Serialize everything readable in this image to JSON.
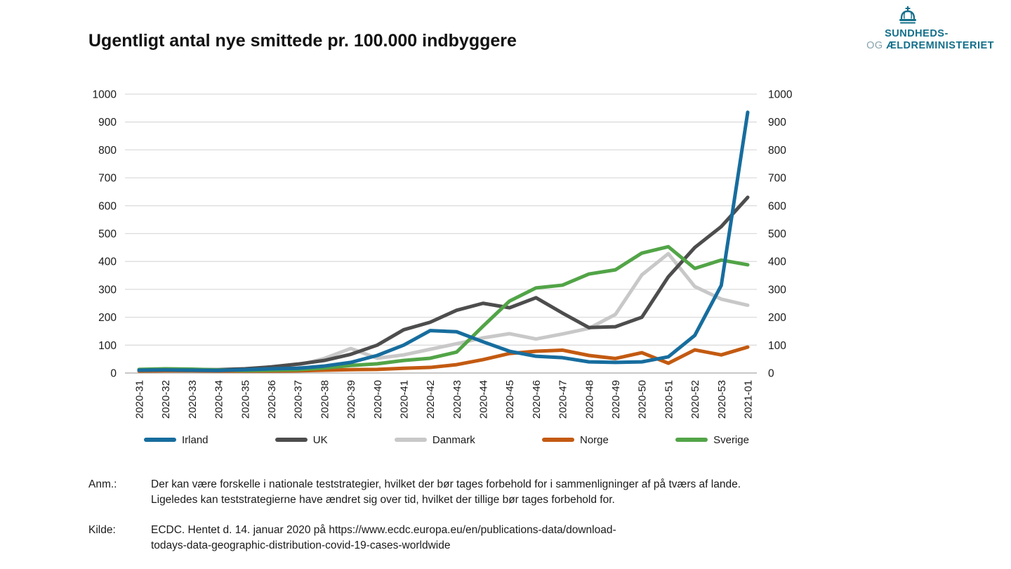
{
  "title": "Ugentligt antal nye smittede pr. 100.000 indbyggere",
  "logo": {
    "crown_icon": "royal-crown",
    "line1": "SUNDHEDS-",
    "line2_prefix": "OG",
    "line2_main": "ÆLDREMINISTERIET",
    "color": "#136f8a",
    "muted_color": "#86a3ae"
  },
  "chart_data": {
    "type": "line",
    "title": "Ugentligt antal nye smittede pr. 100.000 indbyggere",
    "xlabel": "",
    "ylabel": "",
    "ylim": [
      0,
      1000
    ],
    "ytick_step": 100,
    "ytick_labels": [
      "0",
      "100",
      "200",
      "300",
      "400",
      "500",
      "600",
      "700",
      "800",
      "900",
      "1000"
    ],
    "grid": true,
    "dual_y_axis": true,
    "legend_position": "bottom",
    "x": [
      "2020-31",
      "2020-32",
      "2020-33",
      "2020-34",
      "2020-35",
      "2020-36",
      "2020-37",
      "2020-38",
      "2020-39",
      "2020-40",
      "2020-41",
      "2020-42",
      "2020-43",
      "2020-44",
      "2020-45",
      "2020-46",
      "2020-47",
      "2020-48",
      "2020-49",
      "2020-50",
      "2020-51",
      "2020-52",
      "2020-53",
      "2021-01"
    ],
    "series": [
      {
        "name": "Irland",
        "color": "#176d9e",
        "values": [
          10,
          11,
          10,
          9,
          12,
          15,
          17,
          25,
          38,
          63,
          100,
          152,
          148,
          112,
          78,
          60,
          55,
          40,
          38,
          40,
          58,
          135,
          314,
          935
        ]
      },
      {
        "name": "UK",
        "color": "#4d4d4d",
        "values": [
          10,
          12,
          12,
          12,
          15,
          22,
          32,
          45,
          67,
          100,
          155,
          182,
          225,
          250,
          234,
          270,
          215,
          163,
          166,
          200,
          345,
          450,
          525,
          630
        ]
      },
      {
        "name": "Danmark",
        "color": "#c8c8c8",
        "values": [
          8,
          9,
          9,
          10,
          13,
          18,
          28,
          52,
          88,
          53,
          65,
          85,
          105,
          126,
          141,
          122,
          140,
          160,
          210,
          352,
          428,
          310,
          265,
          243
        ]
      },
      {
        "name": "Norge",
        "color": "#c35a11",
        "values": [
          7,
          8,
          8,
          7,
          7,
          7,
          8,
          10,
          12,
          13,
          17,
          20,
          30,
          48,
          70,
          78,
          82,
          63,
          52,
          73,
          35,
          83,
          65,
          93
        ]
      },
      {
        "name": "Sverige",
        "color": "#52a447",
        "values": [
          13,
          15,
          14,
          11,
          9,
          10,
          12,
          18,
          27,
          33,
          45,
          53,
          75,
          168,
          258,
          305,
          315,
          355,
          370,
          430,
          453,
          375,
          405,
          388
        ]
      }
    ]
  },
  "footnotes": {
    "anm_label": "Anm.:",
    "anm_line1": "Der kan være forskelle i nationale teststrategier, hvilket der bør tages forbehold for i sammenligninger af på tværs af lande.",
    "anm_line2": "Ligeledes kan teststrategierne have ændret sig over tid, hvilket der tillige bør tages forbehold for.",
    "kilde_label": "Kilde:",
    "kilde_line1": "ECDC. Hentet d. 14. januar 2020 på https://www.ecdc.europa.eu/en/publications-data/download-",
    "kilde_line2": "todays-data-geographic-distribution-covid-19-cases-worldwide"
  }
}
